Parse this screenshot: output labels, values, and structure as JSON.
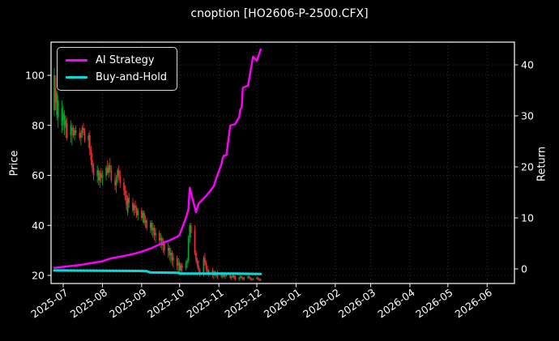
{
  "title": "cnoption [HO2606-P-2500.CFX]",
  "axes": {
    "price_label": "Price",
    "return_label": "Return",
    "price_ticks": [
      20,
      40,
      60,
      80,
      100
    ],
    "return_ticks": [
      0,
      10,
      20,
      30,
      40
    ],
    "x_ticks": [
      {
        "label": "2025-07",
        "date": "2025-07-01"
      },
      {
        "label": "2025-08",
        "date": "2025-08-01"
      },
      {
        "label": "2025-09",
        "date": "2025-09-01"
      },
      {
        "label": "2025-10",
        "date": "2025-10-01"
      },
      {
        "label": "2025-11",
        "date": "2025-11-01"
      },
      {
        "label": "2025-12",
        "date": "2025-12-01"
      },
      {
        "label": "2026-01",
        "date": "2026-01-01"
      },
      {
        "label": "2026-02",
        "date": "2026-02-01"
      },
      {
        "label": "2026-03",
        "date": "2026-03-01"
      },
      {
        "label": "2026-04",
        "date": "2026-04-01"
      },
      {
        "label": "2026-05",
        "date": "2026-05-01"
      },
      {
        "label": "2026-06",
        "date": "2026-06-01"
      }
    ]
  },
  "legend": {
    "items": [
      {
        "label": "AI Strategy",
        "color": "#ff00ff"
      },
      {
        "label": "Buy-and-Hold",
        "color": "#00dcdc"
      }
    ]
  },
  "colors": {
    "background": "#000000",
    "text": "#ffffff",
    "grid": "#3d3d3d",
    "spine": "#ffffff",
    "candle_up": "#00a82d",
    "candle_down": "#e83030",
    "ai_strategy": "#ff00ff",
    "buy_and_hold": "#00dcdc"
  },
  "chart_data": {
    "type": "candlestick+line",
    "title": "cnoption [HO2606-P-2500.CFX]",
    "xlabel": "",
    "ylabel_left": "Price",
    "ylabel_right": "Return",
    "price_ylim": [
      16.8,
      113.3
    ],
    "return_ylim": [
      -2.9,
      44.4
    ],
    "x_range": [
      "2025-06-21",
      "2026-06-22"
    ],
    "grid": true,
    "legend_position": "upper left",
    "candles": {
      "columns": [
        "date",
        "open",
        "high",
        "low",
        "close"
      ],
      "rows": [
        [
          "2025-06-24",
          86,
          103,
          84,
          100
        ],
        [
          "2025-06-25",
          95,
          100,
          86,
          89
        ],
        [
          "2025-06-26",
          84,
          94,
          82,
          93
        ],
        [
          "2025-06-27",
          83,
          92,
          79,
          90
        ],
        [
          "2025-06-30",
          80,
          90,
          77,
          87
        ],
        [
          "2025-07-01",
          82,
          88,
          78,
          85
        ],
        [
          "2025-07-02",
          80,
          86,
          76,
          84
        ],
        [
          "2025-07-03",
          79,
          84,
          75,
          82
        ],
        [
          "2025-07-04",
          81,
          83,
          74,
          75
        ],
        [
          "2025-07-07",
          76,
          82,
          73,
          80
        ],
        [
          "2025-07-08",
          78,
          81,
          72,
          79
        ],
        [
          "2025-07-09",
          79,
          80,
          75,
          76
        ],
        [
          "2025-07-10",
          76,
          79,
          74,
          78
        ],
        [
          "2025-07-11",
          78,
          80,
          76,
          77
        ],
        [
          "2025-07-14",
          77,
          79,
          74,
          75
        ],
        [
          "2025-07-15",
          75,
          78,
          72,
          77
        ],
        [
          "2025-07-16",
          77,
          80,
          75,
          79
        ],
        [
          "2025-07-17",
          79,
          81,
          76,
          78
        ],
        [
          "2025-07-18",
          78,
          79,
          73,
          74
        ],
        [
          "2025-07-21",
          74,
          77,
          71,
          76
        ],
        [
          "2025-07-22",
          76,
          78,
          68,
          70
        ],
        [
          "2025-07-23",
          70,
          72,
          64,
          66
        ],
        [
          "2025-07-24",
          66,
          69,
          61,
          63
        ],
        [
          "2025-07-25",
          63,
          65,
          58,
          60
        ],
        [
          "2025-07-28",
          60,
          64,
          57,
          62
        ],
        [
          "2025-07-29",
          62,
          63,
          56,
          58
        ],
        [
          "2025-07-30",
          58,
          62,
          55,
          61
        ],
        [
          "2025-07-31",
          61,
          63,
          57,
          59
        ],
        [
          "2025-08-01",
          59,
          62,
          56,
          60
        ],
        [
          "2025-08-04",
          60,
          64,
          58,
          63
        ],
        [
          "2025-08-05",
          63,
          66,
          60,
          61
        ],
        [
          "2025-08-06",
          61,
          65,
          59,
          64
        ],
        [
          "2025-08-07",
          64,
          67,
          61,
          62
        ],
        [
          "2025-08-08",
          62,
          64,
          57,
          58
        ],
        [
          "2025-08-11",
          58,
          61,
          54,
          56
        ],
        [
          "2025-08-12",
          56,
          60,
          53,
          59
        ],
        [
          "2025-08-13",
          59,
          63,
          57,
          62
        ],
        [
          "2025-08-14",
          62,
          64,
          58,
          60
        ],
        [
          "2025-08-15",
          60,
          62,
          55,
          57
        ],
        [
          "2025-08-18",
          57,
          59,
          52,
          54
        ],
        [
          "2025-08-19",
          54,
          56,
          50,
          52
        ],
        [
          "2025-08-20",
          52,
          54,
          46,
          48
        ],
        [
          "2025-08-21",
          45,
          52,
          44,
          51
        ],
        [
          "2025-08-22",
          51,
          53,
          47,
          49
        ],
        [
          "2025-08-25",
          49,
          51,
          45,
          46
        ],
        [
          "2025-08-26",
          46,
          49,
          44,
          48
        ],
        [
          "2025-08-27",
          48,
          50,
          45,
          47
        ],
        [
          "2025-08-28",
          47,
          48,
          43,
          44
        ],
        [
          "2025-08-29",
          44,
          47,
          42,
          46
        ],
        [
          "2025-09-01",
          46,
          47,
          42,
          43
        ],
        [
          "2025-09-02",
          43,
          46,
          41,
          45
        ],
        [
          "2025-09-03",
          45,
          46,
          40,
          41
        ],
        [
          "2025-09-04",
          41,
          44,
          39,
          42
        ],
        [
          "2025-09-05",
          42,
          43,
          38,
          39
        ],
        [
          "2025-09-08",
          39,
          42,
          37,
          41
        ],
        [
          "2025-09-09",
          41,
          42,
          36,
          38
        ],
        [
          "2025-09-10",
          38,
          41,
          35,
          39
        ],
        [
          "2025-09-11",
          39,
          40,
          34,
          36
        ],
        [
          "2025-09-12",
          36,
          39,
          33,
          37
        ],
        [
          "2025-09-15",
          37,
          38,
          32,
          34
        ],
        [
          "2025-09-16",
          34,
          37,
          31,
          35
        ],
        [
          "2025-09-17",
          35,
          36,
          30,
          32
        ],
        [
          "2025-09-18",
          32,
          35,
          29,
          33
        ],
        [
          "2025-09-19",
          33,
          34,
          28,
          30
        ],
        [
          "2025-09-22",
          30,
          33,
          27,
          31
        ],
        [
          "2025-09-23",
          31,
          32,
          26,
          28
        ],
        [
          "2025-09-24",
          28,
          31,
          25,
          29
        ],
        [
          "2025-09-25",
          29,
          30,
          24,
          26
        ],
        [
          "2025-09-26",
          26,
          29,
          23,
          27
        ],
        [
          "2025-09-29",
          27,
          28,
          22,
          24
        ],
        [
          "2025-09-30",
          24,
          27,
          21,
          25
        ],
        [
          "2025-10-01",
          25,
          26,
          21,
          22
        ],
        [
          "2025-10-02",
          22,
          25,
          20,
          24
        ],
        [
          "2025-10-03",
          24,
          25,
          21,
          23
        ],
        [
          "2025-10-06",
          23,
          26,
          22,
          25
        ],
        [
          "2025-10-07",
          25,
          27,
          23,
          26
        ],
        [
          "2025-10-08",
          26,
          36,
          25,
          35
        ],
        [
          "2025-10-09",
          35,
          41,
          33,
          40
        ],
        [
          "2025-10-10",
          40,
          41,
          35,
          37
        ],
        [
          "2025-10-13",
          38,
          40,
          28,
          29
        ],
        [
          "2025-10-14",
          29,
          30,
          25,
          26
        ],
        [
          "2025-10-15",
          26,
          27,
          23,
          24
        ],
        [
          "2025-10-16",
          24,
          26,
          21,
          22
        ],
        [
          "2025-10-17",
          22,
          23,
          19.5,
          20.5
        ],
        [
          "2025-10-20",
          20.5,
          28,
          19.5,
          27
        ],
        [
          "2025-10-21",
          27,
          29,
          24,
          25
        ],
        [
          "2025-10-22",
          25,
          26,
          21.5,
          22.5
        ],
        [
          "2025-10-23",
          22.5,
          24,
          20,
          21
        ],
        [
          "2025-10-24",
          21,
          22.5,
          19.5,
          22
        ],
        [
          "2025-10-27",
          22,
          23,
          19,
          20
        ],
        [
          "2025-10-28",
          20,
          22,
          18.5,
          21.5
        ],
        [
          "2025-10-29",
          21.5,
          22,
          19.5,
          20
        ],
        [
          "2025-10-30",
          20,
          21.5,
          19,
          21
        ],
        [
          "2025-10-31",
          21,
          22,
          18.5,
          19.5
        ],
        [
          "2025-11-03",
          21,
          21.5,
          19,
          19.5
        ],
        [
          "2025-11-04",
          19.5,
          21,
          18.5,
          20.5
        ],
        [
          "2025-11-05",
          20.5,
          21,
          19,
          19.5
        ],
        [
          "2025-11-06",
          19.5,
          20.5,
          18.5,
          20
        ],
        [
          "2025-11-07",
          20,
          21,
          19.5,
          20.5
        ],
        [
          "2025-11-10",
          20.5,
          21,
          18.5,
          19
        ],
        [
          "2025-11-11",
          19,
          20,
          18,
          19.5
        ],
        [
          "2025-11-12",
          19.5,
          20.5,
          19,
          20
        ],
        [
          "2025-11-13",
          20,
          20.5,
          18.5,
          19
        ],
        [
          "2025-11-14",
          19,
          20,
          18,
          18.5
        ],
        [
          "2025-11-17",
          18.5,
          19.5,
          17.8,
          19
        ],
        [
          "2025-11-18",
          19,
          20,
          18.5,
          19.5
        ],
        [
          "2025-11-19",
          19.5,
          20,
          18.5,
          19
        ],
        [
          "2025-11-20",
          19,
          19.5,
          18,
          18.5
        ],
        [
          "2025-11-21",
          18.5,
          19.5,
          18,
          19
        ],
        [
          "2025-11-24",
          19,
          20,
          18.5,
          19.5
        ],
        [
          "2025-11-25",
          19.5,
          20,
          18.5,
          19
        ],
        [
          "2025-11-26",
          19,
          19.5,
          18,
          18.5
        ],
        [
          "2025-11-27",
          18.5,
          19,
          17.8,
          18.2
        ],
        [
          "2025-11-28",
          18.2,
          19,
          18,
          18.8
        ],
        [
          "2025-12-01",
          18.8,
          19.5,
          18.2,
          19
        ],
        [
          "2025-12-02",
          19,
          19.5,
          18,
          18.5
        ],
        [
          "2025-12-03",
          18.5,
          19,
          17.8,
          18
        ],
        [
          "2025-12-04",
          18,
          18.8,
          17.6,
          18.4
        ]
      ]
    },
    "series": [
      {
        "name": "AI Strategy",
        "axis": "return",
        "color": "#ff00ff",
        "points": [
          [
            "2025-06-24",
            0.2
          ],
          [
            "2025-07-01",
            0.4
          ],
          [
            "2025-07-08",
            0.6
          ],
          [
            "2025-07-15",
            0.8
          ],
          [
            "2025-07-22",
            1.1
          ],
          [
            "2025-08-01",
            1.5
          ],
          [
            "2025-08-08",
            2.1
          ],
          [
            "2025-08-15",
            2.4
          ],
          [
            "2025-08-25",
            2.9
          ],
          [
            "2025-09-01",
            3.4
          ],
          [
            "2025-09-08",
            4.0
          ],
          [
            "2025-09-15",
            4.8
          ],
          [
            "2025-09-22",
            5.5
          ],
          [
            "2025-09-29",
            6.3
          ],
          [
            "2025-10-01",
            6.7
          ],
          [
            "2025-10-06",
            10.0
          ],
          [
            "2025-10-08",
            11.7
          ],
          [
            "2025-10-09",
            15.9
          ],
          [
            "2025-10-14",
            11.1
          ],
          [
            "2025-10-16",
            12.8
          ],
          [
            "2025-10-22",
            14.3
          ],
          [
            "2025-10-28",
            16.2
          ],
          [
            "2025-10-30",
            17.8
          ],
          [
            "2025-11-03",
            20.5
          ],
          [
            "2025-11-04",
            21.7
          ],
          [
            "2025-11-05",
            22.2
          ],
          [
            "2025-11-07",
            22.3
          ],
          [
            "2025-11-10",
            28.1
          ],
          [
            "2025-11-14",
            28.4
          ],
          [
            "2025-11-17",
            29.7
          ],
          [
            "2025-11-18",
            31.3
          ],
          [
            "2025-11-19",
            31.6
          ],
          [
            "2025-11-20",
            35.5
          ],
          [
            "2025-11-24",
            35.9
          ],
          [
            "2025-11-26",
            38.7
          ],
          [
            "2025-11-28",
            41.6
          ],
          [
            "2025-12-01",
            40.8
          ],
          [
            "2025-12-03",
            42.2
          ],
          [
            "2025-12-04",
            43.0
          ]
        ]
      },
      {
        "name": "Buy-and-Hold",
        "axis": "return",
        "color": "#00dcdc",
        "points": [
          [
            "2025-06-24",
            -0.3
          ],
          [
            "2025-08-29",
            -0.4
          ],
          [
            "2025-09-05",
            -0.45
          ],
          [
            "2025-09-08",
            -0.7
          ],
          [
            "2025-09-30",
            -0.75
          ],
          [
            "2025-10-01",
            -0.9
          ],
          [
            "2025-11-14",
            -0.9
          ],
          [
            "2025-12-04",
            -1.0
          ]
        ]
      }
    ]
  }
}
